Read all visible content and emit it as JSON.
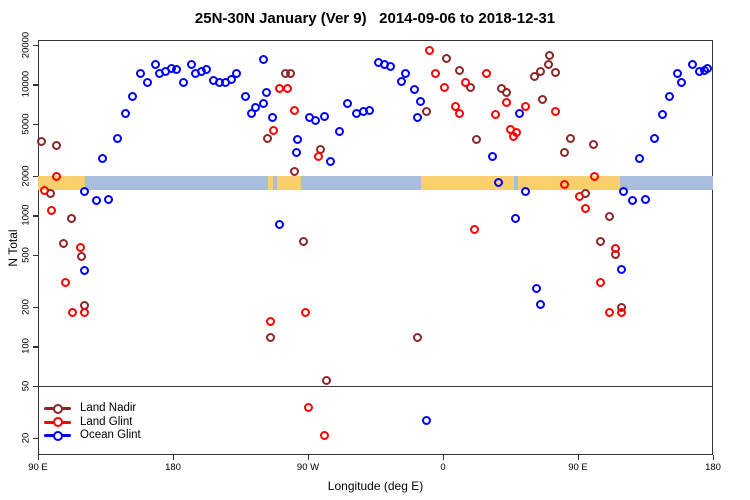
{
  "title": "25N-30N January (Ver 9)   2014-09-06 to 2018-12-31",
  "chart_data": {
    "type": "scatter",
    "title": "25N-30N January (Ver 9)   2014-09-06 to 2018-12-31",
    "xlabel": "Longitude (deg E)",
    "ylabel": "N Total",
    "x_axis": {
      "range": [
        90,
        540
      ],
      "ticks": [
        {
          "v": 90,
          "label": "90 E"
        },
        {
          "v": 180,
          "label": "180"
        },
        {
          "v": 270,
          "label": "90 W"
        },
        {
          "v": 360,
          "label": "0"
        },
        {
          "v": 450,
          "label": "90 E"
        },
        {
          "v": 540,
          "label": "180"
        }
      ]
    },
    "y_axis": {
      "scale": "log",
      "range": [
        15,
        22000
      ],
      "ticks": [
        20000,
        10000,
        5000,
        2000,
        1000,
        500,
        200,
        100,
        50,
        20
      ]
    },
    "reference_line": {
      "n": 50,
      "color": "#3a3a3a"
    },
    "coverage_band": {
      "n_top": 2000,
      "n_bottom": 1560,
      "colors": {
        "land": "#F9CF6F",
        "ocean": "#A9BEDC"
      },
      "segments": [
        {
          "from": 90,
          "to": 121,
          "type": "land"
        },
        {
          "from": 121,
          "to": 243,
          "type": "ocean"
        },
        {
          "from": 243,
          "to": 246.5,
          "type": "land"
        },
        {
          "from": 246.5,
          "to": 249.5,
          "type": "ocean"
        },
        {
          "from": 249.5,
          "to": 265,
          "type": "land"
        },
        {
          "from": 265,
          "to": 345,
          "type": "ocean"
        },
        {
          "from": 345,
          "to": 407,
          "type": "land"
        },
        {
          "from": 407,
          "to": 410,
          "type": "ocean"
        },
        {
          "from": 410,
          "to": 478,
          "type": "land"
        },
        {
          "from": 478,
          "to": 540,
          "type": "ocean"
        }
      ]
    },
    "legend": {
      "position": "bottom-left",
      "entries": [
        "Land Nadir",
        "Land Glint",
        "Ocean Glint"
      ]
    },
    "series": [
      {
        "name": "Land Nadir",
        "color": "#8B2626",
        "points": [
          [
            92,
            3640
          ],
          [
            102,
            3390
          ],
          [
            98,
            1460
          ],
          [
            112,
            955
          ],
          [
            107,
            615
          ],
          [
            119,
            490
          ],
          [
            121,
            207
          ],
          [
            255,
            12200
          ],
          [
            258,
            12200
          ],
          [
            243,
            3900
          ],
          [
            261,
            2150
          ],
          [
            278,
            3160
          ],
          [
            267,
            627
          ],
          [
            245,
            116
          ],
          [
            343,
            116
          ],
          [
            282,
            55
          ],
          [
            362,
            15900
          ],
          [
            371,
            12700
          ],
          [
            378,
            9550
          ],
          [
            349,
            6160
          ],
          [
            382,
            3770
          ],
          [
            431,
            16500
          ],
          [
            430,
            14100
          ],
          [
            425,
            12450
          ],
          [
            435,
            12300
          ],
          [
            421,
            11400
          ],
          [
            399,
            9230
          ],
          [
            402,
            8610
          ],
          [
            426,
            7740
          ],
          [
            445,
            3900
          ],
          [
            441,
            3000
          ],
          [
            460,
            3450
          ],
          [
            455,
            1480
          ],
          [
            471,
            973
          ],
          [
            465,
            627
          ],
          [
            475,
            499
          ],
          [
            479,
            200
          ]
        ]
      },
      {
        "name": "Land Glint",
        "color": "#FF0000",
        "points": [
          [
            102,
            2000
          ],
          [
            94,
            1560
          ],
          [
            99,
            1100
          ],
          [
            118,
            565
          ],
          [
            108,
            310
          ],
          [
            113,
            180
          ],
          [
            121,
            183
          ],
          [
            251,
            9230
          ],
          [
            256,
            9230
          ],
          [
            261,
            6270
          ],
          [
            247,
            4420
          ],
          [
            277,
            2840
          ],
          [
            268,
            181
          ],
          [
            245,
            154
          ],
          [
            270,
            34
          ],
          [
            281,
            21
          ],
          [
            351,
            18300
          ],
          [
            355,
            12200
          ],
          [
            361,
            9550
          ],
          [
            368,
            6840
          ],
          [
            371,
            6050
          ],
          [
            375,
            10260
          ],
          [
            389,
            12200
          ],
          [
            381,
            775
          ],
          [
            395,
            5940
          ],
          [
            402,
            7340
          ],
          [
            415,
            6730
          ],
          [
            435,
            6160
          ],
          [
            405,
            4490
          ],
          [
            409,
            4260
          ],
          [
            407,
            3970
          ],
          [
            461,
            2000
          ],
          [
            441,
            1710
          ],
          [
            451,
            1400
          ],
          [
            455,
            1120
          ],
          [
            475,
            564
          ],
          [
            465,
            310
          ],
          [
            471,
            181
          ],
          [
            479,
            180
          ]
        ]
      },
      {
        "name": "Ocean Glint",
        "color": "#0000FF",
        "points": [
          [
            133,
            2740
          ],
          [
            143,
            3900
          ],
          [
            148,
            6050
          ],
          [
            153,
            8020
          ],
          [
            158,
            12200
          ],
          [
            163,
            10260
          ],
          [
            168,
            14320
          ],
          [
            171,
            12200
          ],
          [
            175,
            12450
          ],
          [
            179,
            13120
          ],
          [
            182,
            12900
          ],
          [
            187,
            10420
          ],
          [
            192,
            14100
          ],
          [
            195,
            12200
          ],
          [
            199,
            12450
          ],
          [
            202,
            12900
          ],
          [
            207,
            10800
          ],
          [
            211,
            10430
          ],
          [
            215,
            10260
          ],
          [
            219,
            10990
          ],
          [
            222,
            12030
          ],
          [
            228,
            8020
          ],
          [
            232,
            6050
          ],
          [
            235,
            6610
          ],
          [
            240,
            15600
          ],
          [
            242,
            8610
          ],
          [
            240,
            7190
          ],
          [
            246,
            5550
          ],
          [
            121,
            1510
          ],
          [
            129,
            1290
          ],
          [
            137,
            1330
          ],
          [
            121,
            377
          ],
          [
            251,
            860
          ],
          [
            263,
            3830
          ],
          [
            262,
            3000
          ],
          [
            271,
            5640
          ],
          [
            275,
            5260
          ],
          [
            281,
            5700
          ],
          [
            285,
            2560
          ],
          [
            291,
            4340
          ],
          [
            296,
            7190
          ],
          [
            302,
            6050
          ],
          [
            307,
            6160
          ],
          [
            311,
            6270
          ],
          [
            317,
            14830
          ],
          [
            321,
            14320
          ],
          [
            325,
            13600
          ],
          [
            332,
            10550
          ],
          [
            335,
            12200
          ],
          [
            341,
            9130
          ],
          [
            345,
            7360
          ],
          [
            343,
            5550
          ],
          [
            349,
            27
          ],
          [
            393,
            2800
          ],
          [
            397,
            1770
          ],
          [
            411,
            6050
          ],
          [
            408,
            940
          ],
          [
            415,
            1510
          ],
          [
            422,
            279
          ],
          [
            425,
            210
          ],
          [
            479,
            384
          ],
          [
            480,
            1520
          ],
          [
            486,
            1290
          ],
          [
            495,
            1330
          ],
          [
            491,
            2740
          ],
          [
            501,
            3900
          ],
          [
            506,
            5940
          ],
          [
            511,
            8020
          ],
          [
            516,
            12200
          ],
          [
            519,
            10260
          ],
          [
            526,
            14320
          ],
          [
            531,
            12450
          ],
          [
            534,
            12670
          ],
          [
            536,
            13120
          ]
        ]
      }
    ]
  }
}
